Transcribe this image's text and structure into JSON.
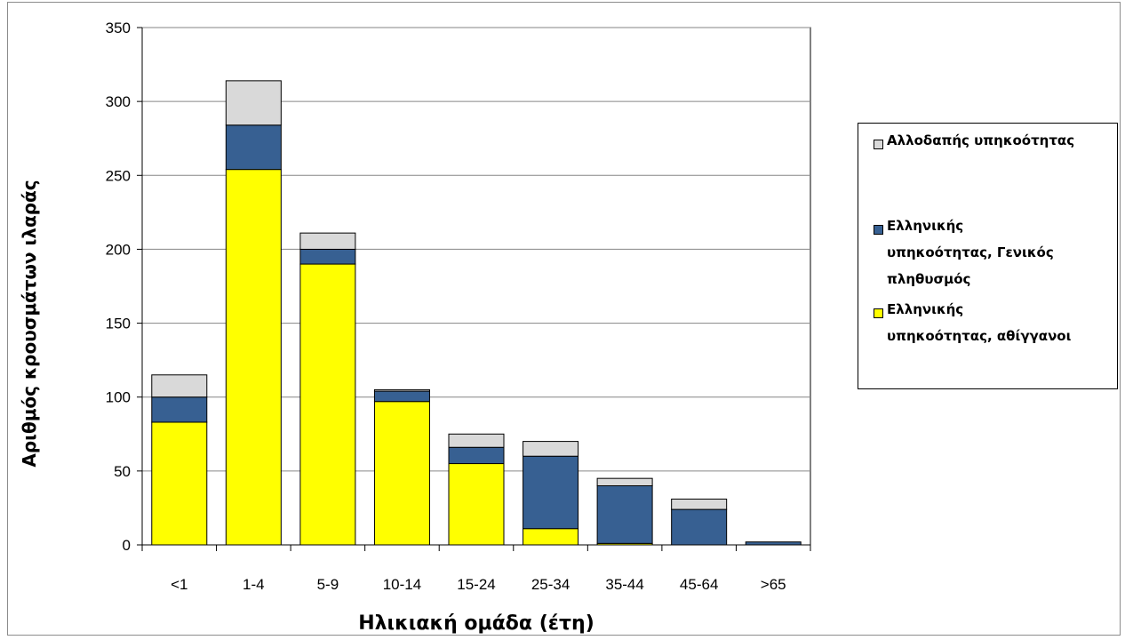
{
  "chart_data": {
    "type": "bar",
    "stacked": true,
    "title": "",
    "xlabel": "Ηλικιακή ομάδα (έτη)",
    "ylabel": "Αριθμός κρουσμάτων ιλαράς",
    "categories": [
      "<1",
      "1-4",
      "5-9",
      "10-14",
      "15-24",
      "25-34",
      "35-44",
      "45-64",
      ">65"
    ],
    "ylim": [
      0,
      350
    ],
    "yticks": [
      "0",
      "50",
      "100",
      "150",
      "200",
      "250",
      "300",
      "350"
    ],
    "grid": true,
    "legend_position": "right",
    "series": [
      {
        "name": "Ελληνικής υπηκοότητας, αθίγγανοι",
        "color": "#ffff00",
        "values": [
          83,
          254,
          190,
          97,
          55,
          11,
          1,
          0,
          0
        ]
      },
      {
        "name": "Ελληνικής υπηκοότητας, Γενικός πληθυσμός",
        "color": "#376092",
        "values": [
          17,
          30,
          10,
          7,
          11,
          49,
          39,
          24,
          2
        ]
      },
      {
        "name": "Αλλοδαπής υπηκοότητας",
        "color": "#d9d9d9",
        "values": [
          15,
          30,
          11,
          1,
          9,
          10,
          5,
          7,
          0
        ]
      }
    ]
  },
  "legend": {
    "items": [
      {
        "lines": [
          "Αλλοδαπής υπηκοότητας"
        ],
        "color": "#d9d9d9"
      },
      {
        "lines": [
          "Ελληνικής",
          "υπηκοότητας, Γενικός",
          "πληθυσμός"
        ],
        "color": "#376092"
      },
      {
        "lines": [
          "Ελληνικής",
          "υπηκοότητας, αθίγγανοι"
        ],
        "color": "#ffff00"
      }
    ]
  }
}
